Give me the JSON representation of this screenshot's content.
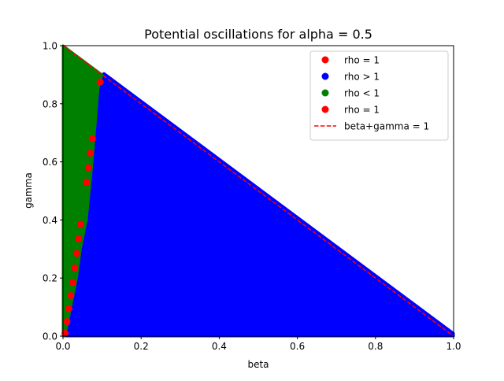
{
  "chart_data": {
    "type": "scatter",
    "title": "Potential oscillations for alpha = 0.5",
    "xlabel": "beta",
    "ylabel": "gamma",
    "xlim": [
      0,
      1
    ],
    "ylim": [
      0,
      1
    ],
    "x_ticks": [
      "0.0",
      "0.2",
      "0.4",
      "0.6",
      "0.8",
      "1.0"
    ],
    "y_ticks": [
      "0.0",
      "0.2",
      "0.4",
      "0.6",
      "0.8",
      "1.0"
    ],
    "grid": false,
    "legend_placement": "top-right",
    "legend": [
      {
        "label": "rho = 1",
        "marker": "dot",
        "color": "#ff0000"
      },
      {
        "label": "rho > 1",
        "marker": "dot",
        "color": "#0000ff"
      },
      {
        "label": "rho < 1",
        "marker": "dot",
        "color": "#008000"
      },
      {
        "label": "rho = 1",
        "marker": "dot",
        "color": "#ff0000"
      },
      {
        "label": "beta+gamma = 1",
        "marker": "dashed-line",
        "color": "#ff0000"
      }
    ],
    "series": [
      {
        "name": "rho > 1",
        "color": "#0000ff",
        "region": [
          [
            0.005,
            0.0
          ],
          [
            1.0,
            0.0
          ],
          [
            1.0,
            0.01
          ],
          [
            0.105,
            0.905
          ],
          [
            0.1,
            0.9
          ],
          [
            0.09,
            0.85
          ],
          [
            0.075,
            0.6
          ],
          [
            0.06,
            0.4
          ],
          [
            0.045,
            0.3
          ],
          [
            0.035,
            0.2
          ],
          [
            0.02,
            0.1
          ]
        ]
      },
      {
        "name": "rho < 1",
        "color": "#008000",
        "region": [
          [
            0.0,
            0.0
          ],
          [
            0.005,
            0.0
          ],
          [
            0.02,
            0.1
          ],
          [
            0.035,
            0.2
          ],
          [
            0.045,
            0.3
          ],
          [
            0.06,
            0.4
          ],
          [
            0.075,
            0.6
          ],
          [
            0.09,
            0.85
          ],
          [
            0.1,
            0.9
          ],
          [
            0.0,
            1.0
          ]
        ]
      },
      {
        "name": "rho = 1",
        "color": "#ff0000",
        "points": [
          [
            0.005,
            0.01
          ],
          [
            0.01,
            0.05
          ],
          [
            0.015,
            0.095
          ],
          [
            0.02,
            0.14
          ],
          [
            0.025,
            0.185
          ],
          [
            0.03,
            0.235
          ],
          [
            0.035,
            0.285
          ],
          [
            0.04,
            0.335
          ],
          [
            0.045,
            0.385
          ],
          [
            0.06,
            0.53
          ],
          [
            0.065,
            0.58
          ],
          [
            0.07,
            0.63
          ],
          [
            0.075,
            0.68
          ],
          [
            0.095,
            0.875
          ]
        ]
      },
      {
        "name": "beta+gamma = 1",
        "color": "#ff0000",
        "line": [
          [
            0.0,
            1.0
          ],
          [
            1.0,
            0.0
          ]
        ]
      }
    ]
  }
}
